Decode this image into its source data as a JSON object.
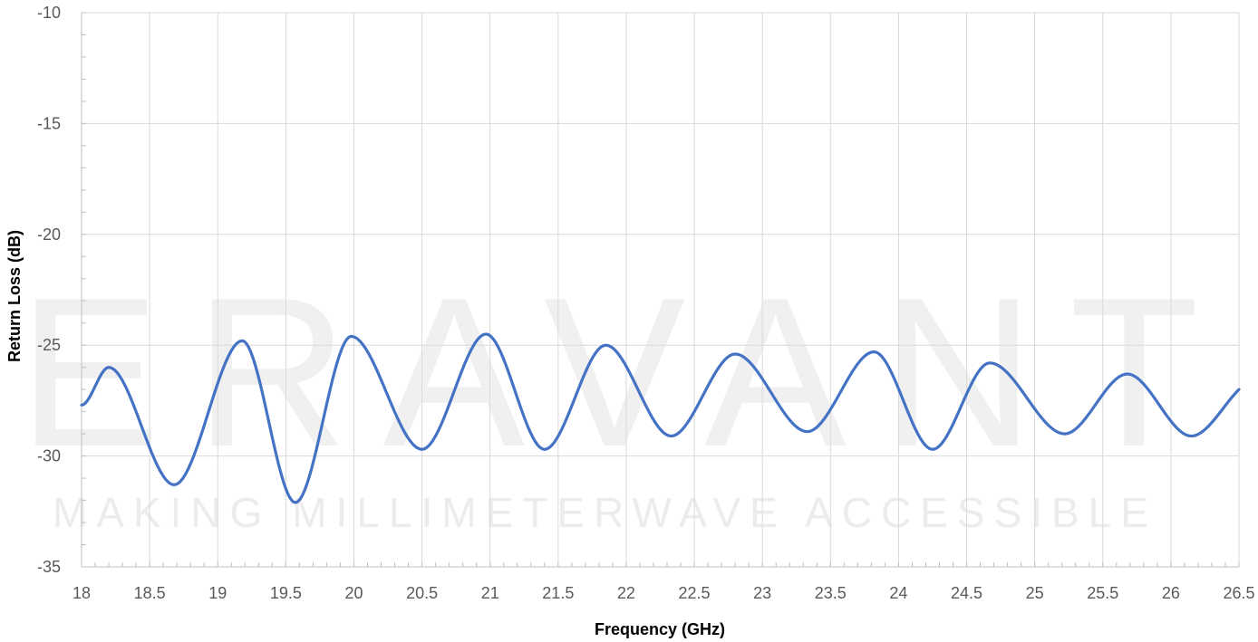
{
  "watermark": {
    "brand": "ERAVANT",
    "tagline": "MAKING MILLIMETERWAVE ACCESSIBLE"
  },
  "chart_data": {
    "type": "line",
    "xlabel": "Frequency (GHz)",
    "ylabel": "Return Loss (dB)",
    "xlim": [
      18,
      26.5
    ],
    "ylim": [
      -35,
      -10
    ],
    "x_ticks": [
      "18",
      "18.5",
      "19",
      "19.5",
      "20",
      "20.5",
      "21",
      "21.5",
      "22",
      "22.5",
      "23",
      "23.5",
      "24",
      "24.5",
      "25",
      "25.5",
      "26",
      "26.5"
    ],
    "y_ticks": [
      "-10",
      "-15",
      "-20",
      "-25",
      "-30",
      "-35"
    ],
    "grid": true,
    "line_color": "#4472C4",
    "series": [
      {
        "x": [
          18.0,
          18.2,
          18.68,
          19.18,
          19.57,
          19.98,
          20.5,
          20.97,
          21.4,
          21.85,
          22.33,
          22.8,
          23.33,
          23.82,
          24.25,
          24.67,
          25.22,
          25.68,
          26.15,
          26.5
        ],
        "y": [
          -27.7,
          -26.0,
          -31.3,
          -24.8,
          -32.1,
          -24.6,
          -29.7,
          -24.5,
          -29.7,
          -25.0,
          -29.1,
          -25.4,
          -28.9,
          -25.3,
          -29.7,
          -25.8,
          -29.0,
          -26.3,
          -29.1,
          -27.0
        ]
      }
    ]
  }
}
